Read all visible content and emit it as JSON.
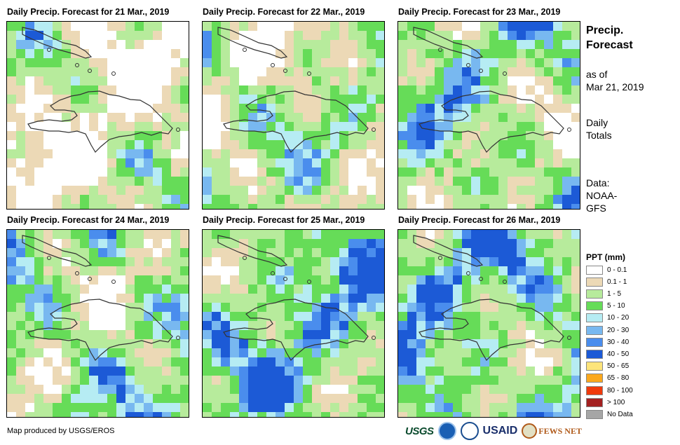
{
  "panels": [
    {
      "title": "Daily Precip. Forecast for 21 Mar., 2019",
      "wetness": 0
    },
    {
      "title": "Daily Precip. Forecast for 22 Mar., 2019",
      "wetness": 1
    },
    {
      "title": "Daily Precip. Forecast for 23 Mar., 2019",
      "wetness": 2
    },
    {
      "title": "Daily Precip. Forecast for 24 Mar., 2019",
      "wetness": 2
    },
    {
      "title": "Daily Precip. Forecast for 25 Mar., 2019",
      "wetness": 3
    },
    {
      "title": "Daily Precip. Forecast for 26 Mar., 2019",
      "wetness": 3
    }
  ],
  "side": {
    "title_line1": "Precip.",
    "title_line2": "Forecast",
    "asof_line1": "as of",
    "asof_line2": "Mar 21, 2019",
    "daily_line1": "Daily",
    "daily_line2": "Totals",
    "data_line1": "Data:",
    "data_line2": "NOAA-",
    "data_line3": "GFS"
  },
  "legend": {
    "title": "PPT (mm)",
    "items": [
      {
        "label": "0 - 0.1",
        "color": "#ffffff"
      },
      {
        "label": "0.1 - 1",
        "color": "#ecd9b6"
      },
      {
        "label": "1 - 5",
        "color": "#b7eb9c"
      },
      {
        "label": "5 - 10",
        "color": "#66dc58"
      },
      {
        "label": "10 - 20",
        "color": "#b6ecf3"
      },
      {
        "label": "20 - 30",
        "color": "#78b8f0"
      },
      {
        "label": "30 - 40",
        "color": "#4a8ded"
      },
      {
        "label": "40 - 50",
        "color": "#1c5ad6"
      },
      {
        "label": "50 - 65",
        "color": "#fde47a"
      },
      {
        "label": "65 - 80",
        "color": "#fba81c"
      },
      {
        "label": "80 - 100",
        "color": "#f03a0c"
      },
      {
        "label": "> 100",
        "color": "#a32020"
      },
      {
        "label": "No Data",
        "color": "#a6a6a6"
      }
    ]
  },
  "credit": "Map produced by USGS/EROS",
  "logos": {
    "usgs": "USGS",
    "usaid": "USAID",
    "fews": "FEWS NET"
  }
}
